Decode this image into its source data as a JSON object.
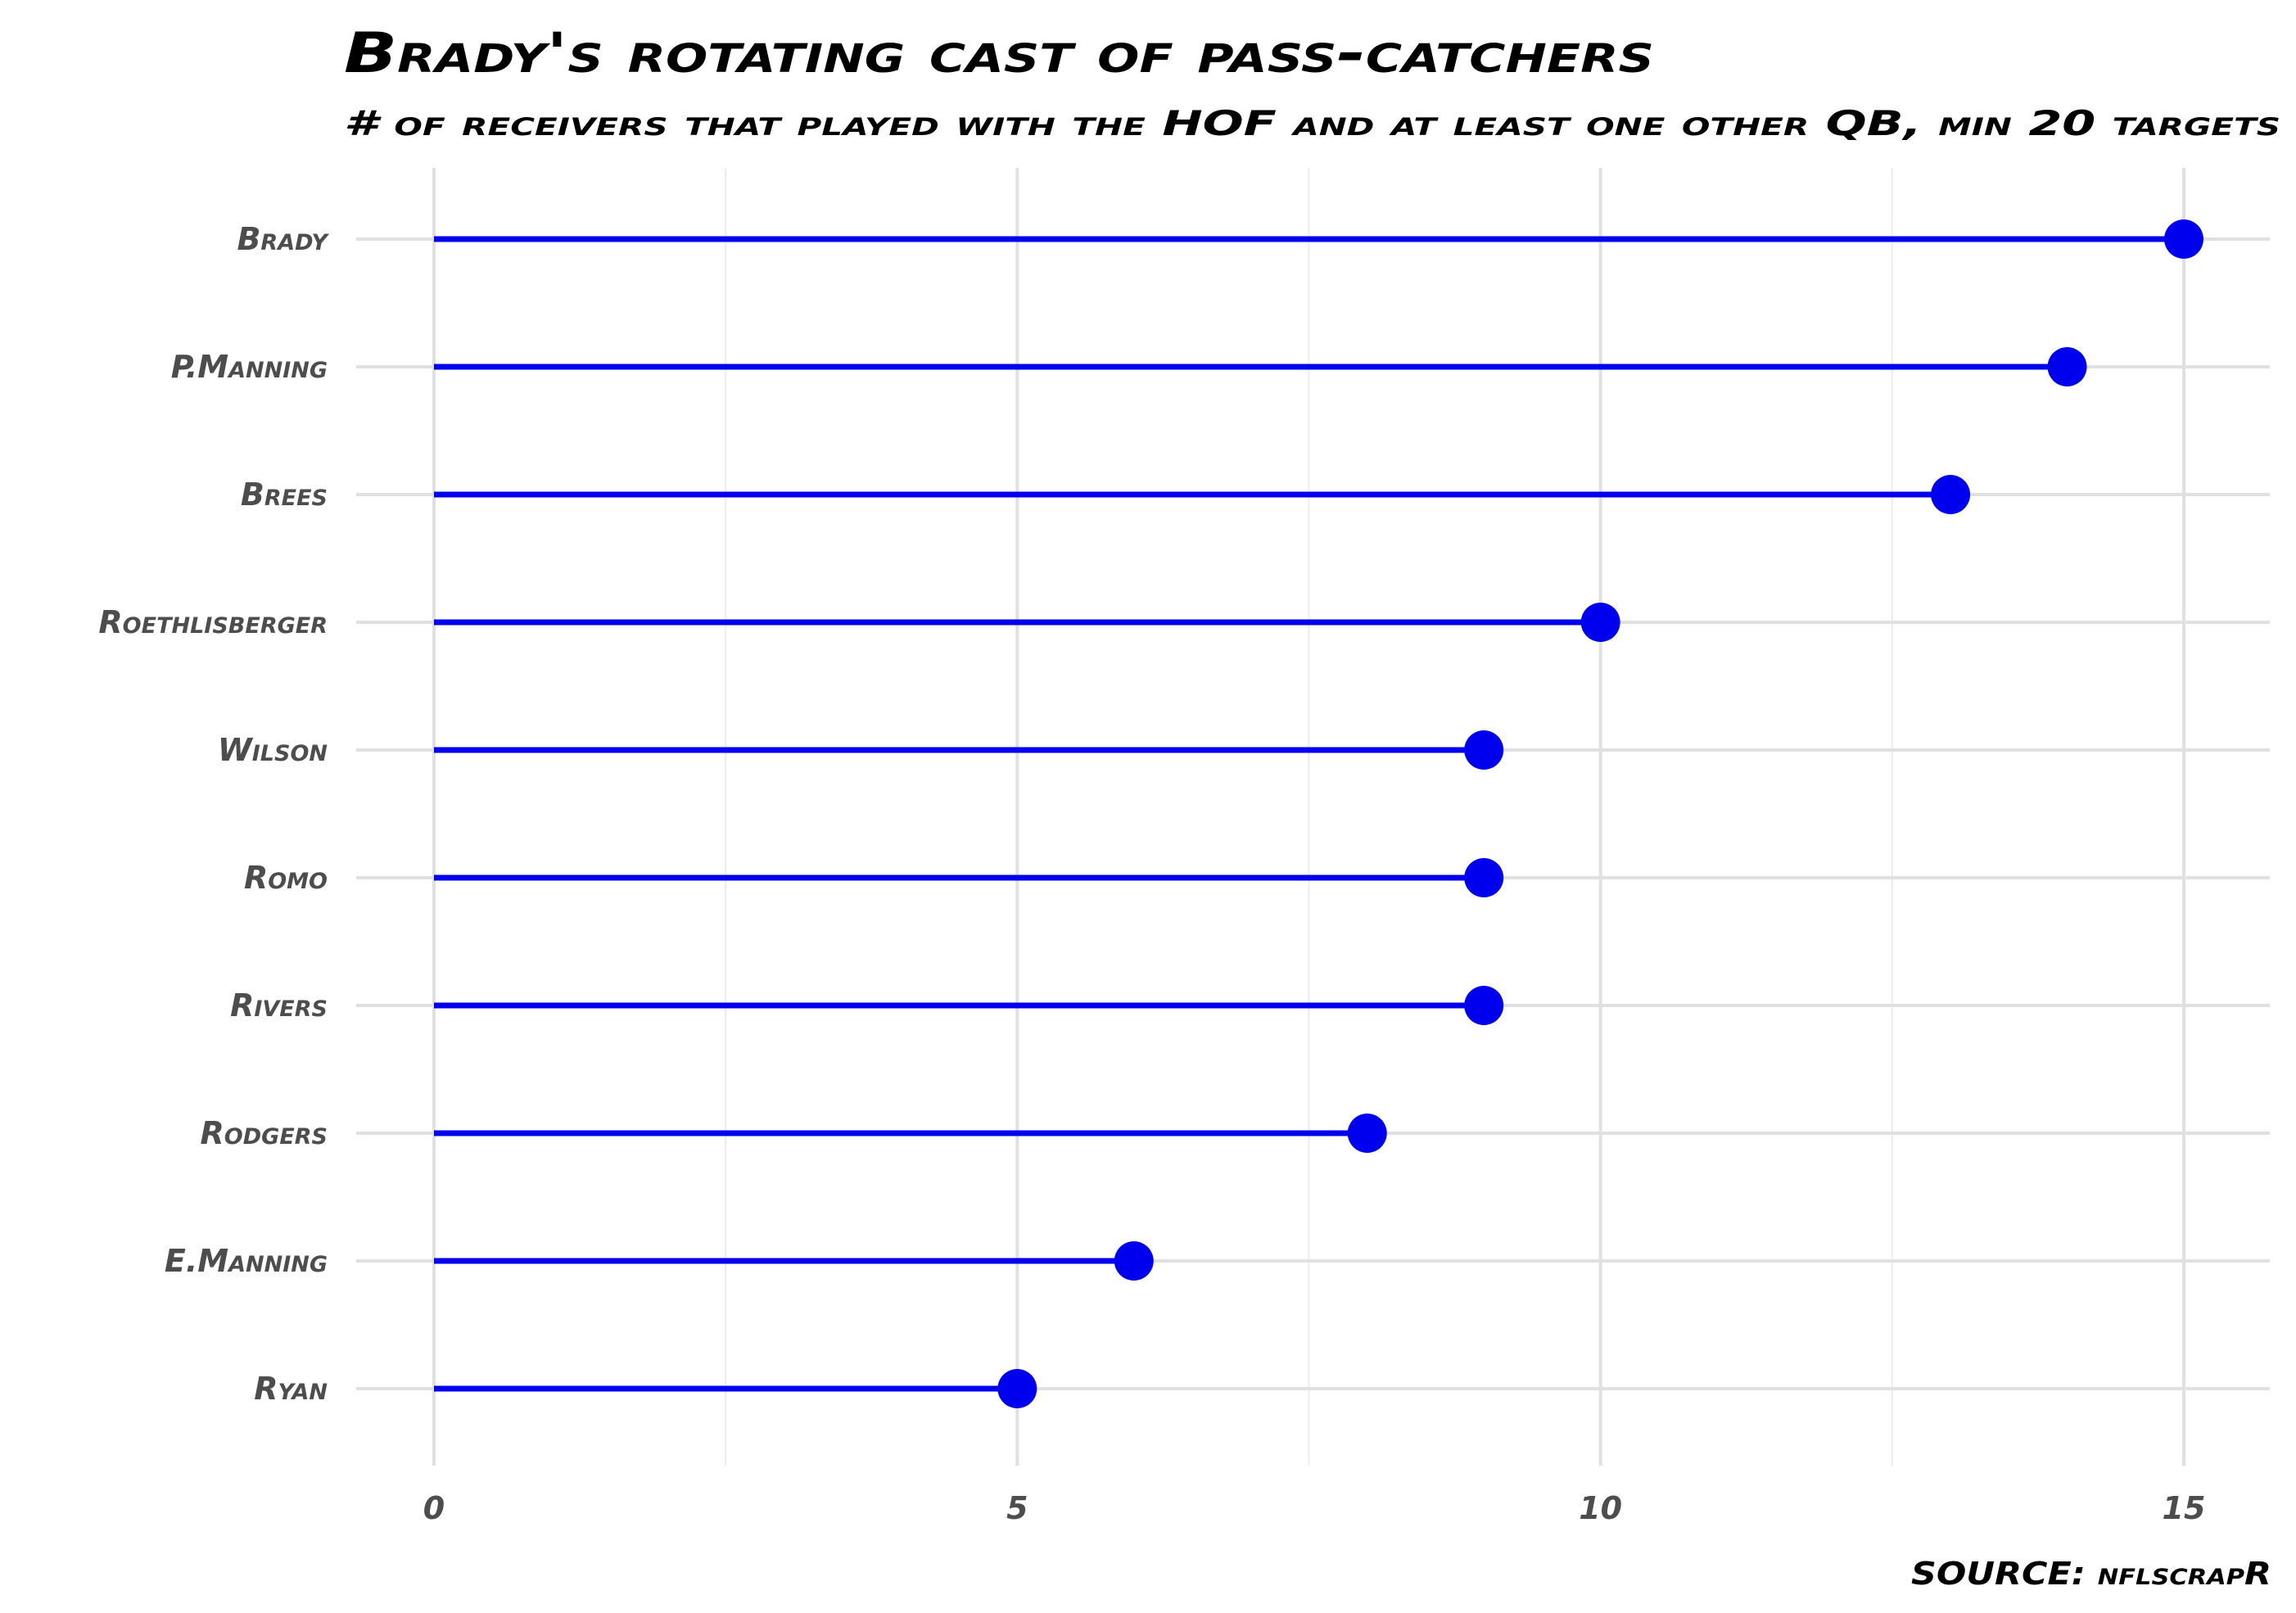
{
  "chart_data": {
    "type": "lollipop",
    "title": "Brady's rotating cast of pass-catchers",
    "subtitle": "# of receivers that played with the HOF and at least one other QB, min 20 targets",
    "caption": "SOURCE: nflscrapR",
    "xlabel": "",
    "ylabel": "",
    "xlim": [
      0,
      15
    ],
    "x_ticks": [
      "0",
      "5",
      "10",
      "15"
    ],
    "grid": true,
    "categories": [
      "Brady",
      "P.Manning",
      "Brees",
      "Roethlisberger",
      "Wilson",
      "Romo",
      "Rivers",
      "Rodgers",
      "E.Manning",
      "Ryan"
    ],
    "values": [
      15,
      14,
      13,
      10,
      9,
      9,
      9,
      8,
      6,
      5
    ],
    "color": "#0000ee"
  }
}
